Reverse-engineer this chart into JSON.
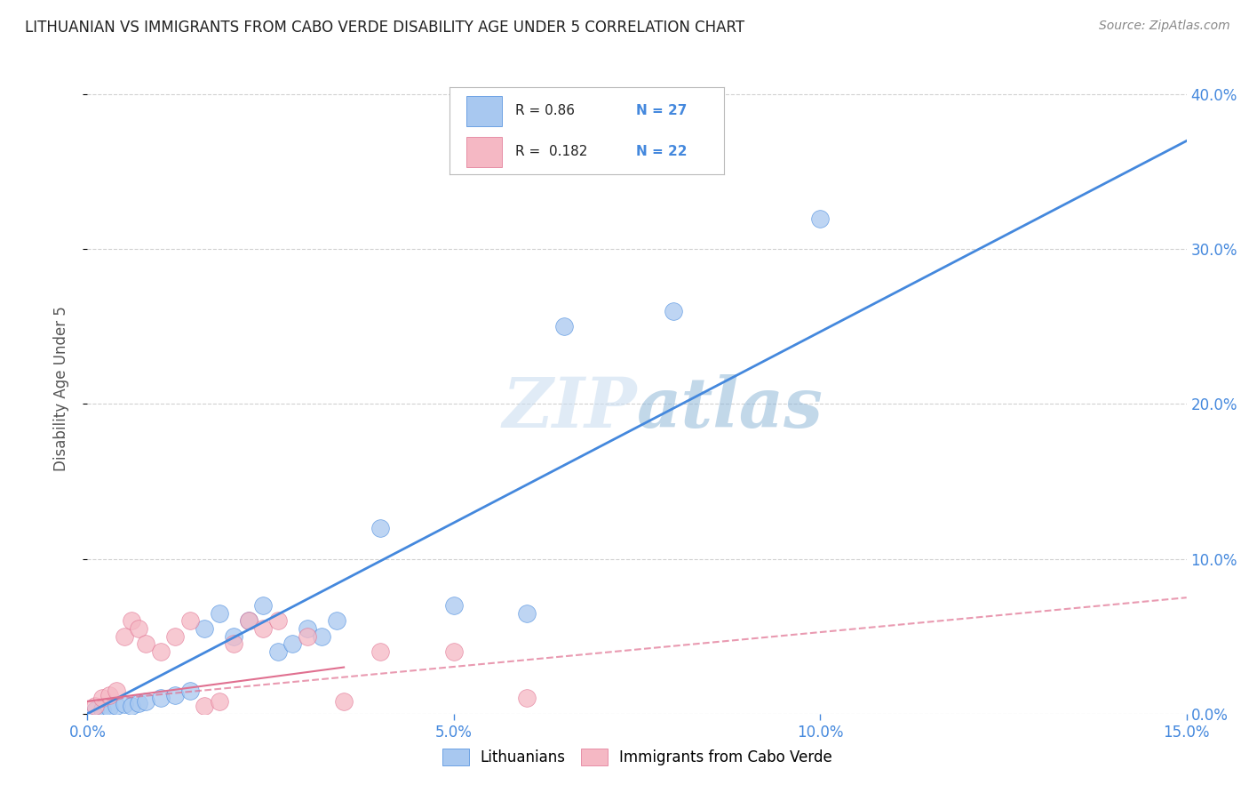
{
  "title": "LITHUANIAN VS IMMIGRANTS FROM CABO VERDE DISABILITY AGE UNDER 5 CORRELATION CHART",
  "source": "Source: ZipAtlas.com",
  "ylabel": "Disability Age Under 5",
  "xmin": 0.0,
  "xmax": 0.15,
  "ymin": 0.0,
  "ymax": 0.42,
  "blue_R": 0.86,
  "blue_N": 27,
  "pink_R": 0.182,
  "pink_N": 22,
  "blue_color": "#A8C8F0",
  "pink_color": "#F5B8C4",
  "blue_line_color": "#4488DD",
  "pink_line_color": "#E07090",
  "grid_color": "#CCCCCC",
  "background_color": "#FFFFFF",
  "title_color": "#222222",
  "axis_label_color": "#4488DD",
  "blue_scatter_x": [
    0.001,
    0.002,
    0.003,
    0.004,
    0.005,
    0.006,
    0.007,
    0.008,
    0.01,
    0.012,
    0.014,
    0.016,
    0.018,
    0.02,
    0.022,
    0.024,
    0.026,
    0.028,
    0.03,
    0.032,
    0.034,
    0.04,
    0.05,
    0.06,
    0.065,
    0.08,
    0.1
  ],
  "blue_scatter_y": [
    0.002,
    0.003,
    0.004,
    0.005,
    0.006,
    0.005,
    0.007,
    0.008,
    0.01,
    0.012,
    0.015,
    0.055,
    0.065,
    0.05,
    0.06,
    0.07,
    0.04,
    0.045,
    0.055,
    0.05,
    0.06,
    0.12,
    0.07,
    0.065,
    0.25,
    0.26,
    0.32
  ],
  "pink_scatter_x": [
    0.001,
    0.002,
    0.003,
    0.004,
    0.005,
    0.006,
    0.007,
    0.008,
    0.01,
    0.012,
    0.014,
    0.016,
    0.018,
    0.02,
    0.022,
    0.024,
    0.026,
    0.03,
    0.035,
    0.04,
    0.05,
    0.06
  ],
  "pink_scatter_y": [
    0.005,
    0.01,
    0.012,
    0.015,
    0.05,
    0.06,
    0.055,
    0.045,
    0.04,
    0.05,
    0.06,
    0.005,
    0.008,
    0.045,
    0.06,
    0.055,
    0.06,
    0.05,
    0.008,
    0.04,
    0.04,
    0.01
  ]
}
